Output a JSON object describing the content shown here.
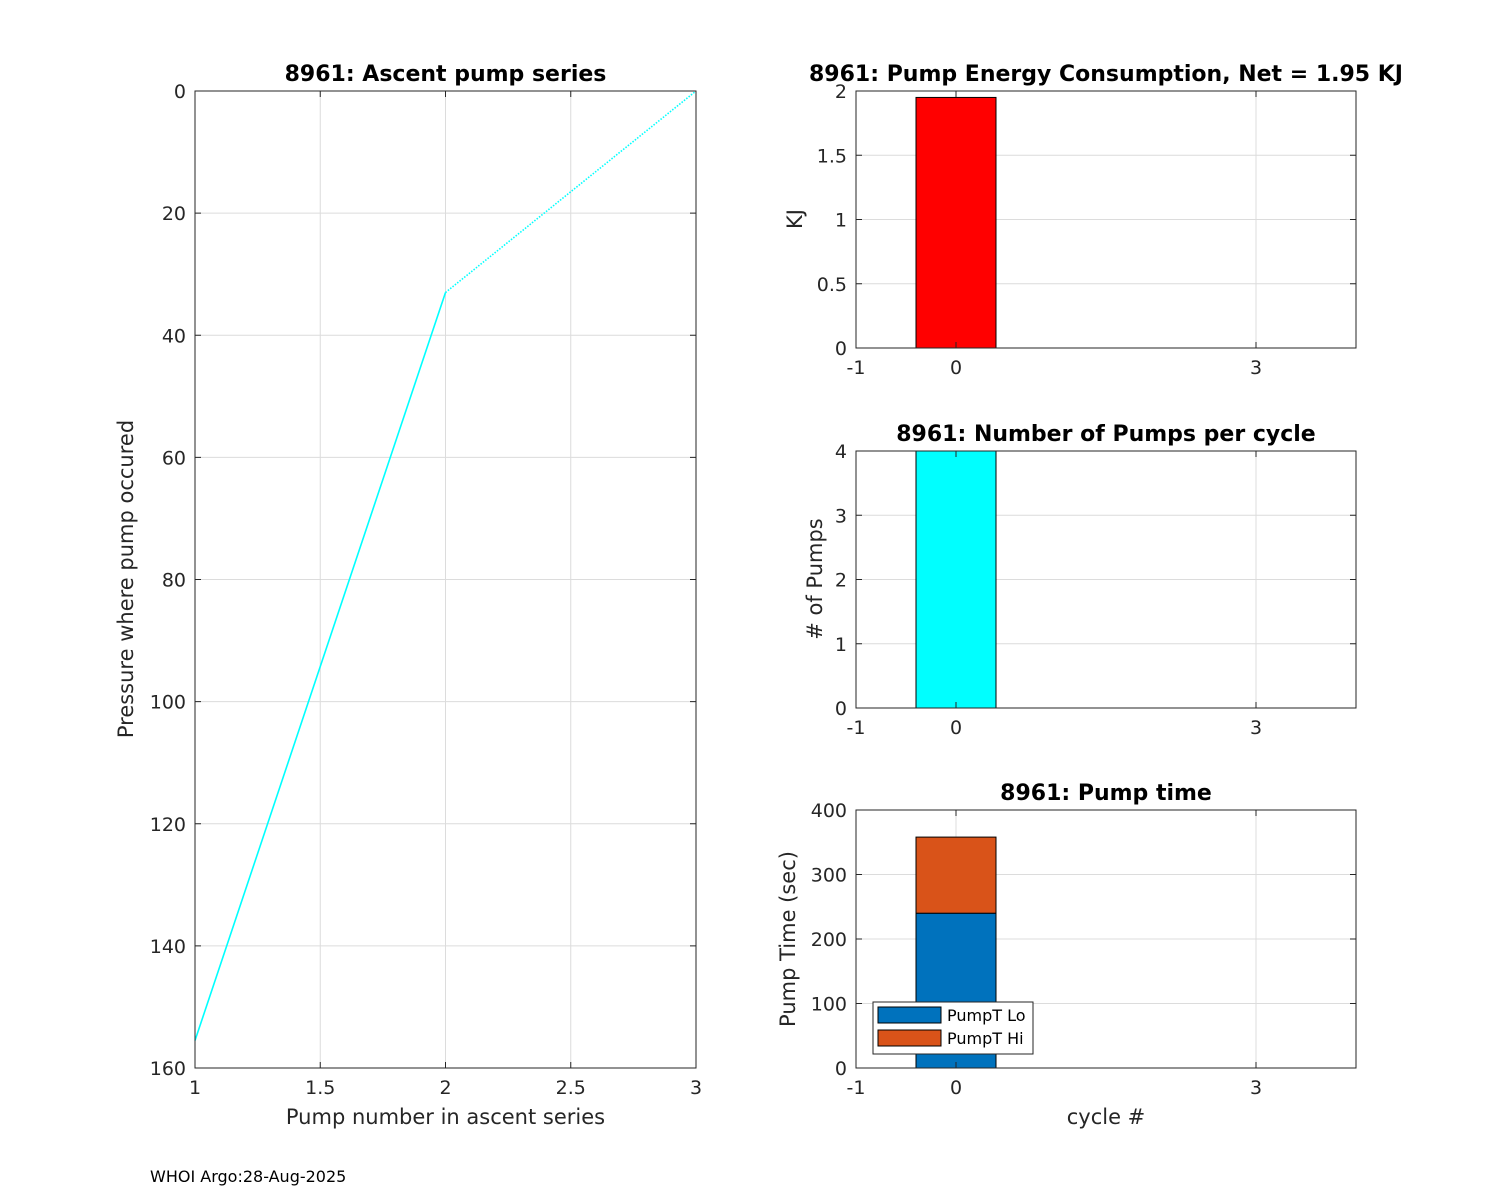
{
  "footer": "WHOI Argo:28-Aug-2025",
  "chart_data": [
    {
      "id": "ascent",
      "type": "line",
      "title": "8961: Ascent pump series",
      "xlabel": "Pump number in ascent series",
      "ylabel": "Pressure where pump occured",
      "xlim": [
        1,
        3
      ],
      "ylim": [
        0,
        160
      ],
      "y_reversed": true,
      "grid": true,
      "xticks": [
        1,
        1.5,
        2,
        2.5,
        3
      ],
      "xtick_labels": [
        "1",
        "1.5",
        "2",
        "2.5",
        "3"
      ],
      "yticks": [
        0,
        20,
        40,
        60,
        80,
        100,
        120,
        140,
        160
      ],
      "ytick_labels": [
        "0",
        "20",
        "40",
        "60",
        "80",
        "100",
        "120",
        "140",
        "160"
      ],
      "series": [
        {
          "x": [
            1,
            2
          ],
          "y": [
            155.5,
            33
          ],
          "color": "#00ffff",
          "style": "solid"
        },
        {
          "x": [
            2,
            3
          ],
          "y": [
            33,
            0
          ],
          "color": "#00ffff",
          "style": "dotted"
        }
      ]
    },
    {
      "id": "energy",
      "type": "bar",
      "title": "8961: Pump Energy Consumption,  Net =   1.95 KJ",
      "xlabel": "",
      "ylabel": "KJ",
      "xlim": [
        -1,
        4
      ],
      "ylim": [
        0,
        2
      ],
      "grid": true,
      "xticks": [
        -1,
        0,
        3
      ],
      "xtick_labels": [
        "-1",
        "0",
        "3"
      ],
      "yticks": [
        0,
        0.5,
        1,
        1.5,
        2
      ],
      "ytick_labels": [
        "0",
        "0.5",
        "1",
        "1.5",
        "2"
      ],
      "bar_width": 0.8,
      "x": [
        0
      ],
      "series": [
        {
          "values": [
            1.95
          ],
          "color": "#ff0000"
        }
      ]
    },
    {
      "id": "pumps",
      "type": "bar",
      "title": "8961: Number of Pumps per cycle",
      "xlabel": "",
      "ylabel": "# of Pumps",
      "xlim": [
        -1,
        4
      ],
      "ylim": [
        0,
        4
      ],
      "grid": true,
      "xticks": [
        -1,
        0,
        3
      ],
      "xtick_labels": [
        "-1",
        "0",
        "3"
      ],
      "yticks": [
        0,
        1,
        2,
        3,
        4
      ],
      "ytick_labels": [
        "0",
        "1",
        "2",
        "3",
        "4"
      ],
      "bar_width": 0.8,
      "x": [
        0
      ],
      "series": [
        {
          "values": [
            4
          ],
          "color": "#00ffff"
        }
      ]
    },
    {
      "id": "pumptime",
      "type": "bar",
      "stacked": true,
      "title": "8961: Pump time",
      "xlabel": "cycle #",
      "ylabel": "Pump Time (sec)",
      "xlim": [
        -1,
        4
      ],
      "ylim": [
        0,
        400
      ],
      "grid": true,
      "xticks": [
        -1,
        0,
        3
      ],
      "xtick_labels": [
        "-1",
        "0",
        "3"
      ],
      "yticks": [
        0,
        100,
        200,
        300,
        400
      ],
      "ytick_labels": [
        "0",
        "100",
        "200",
        "300",
        "400"
      ],
      "bar_width": 0.8,
      "x": [
        0
      ],
      "legend_location": "bottom-left",
      "series": [
        {
          "name": "PumpT Lo",
          "values": [
            240
          ],
          "color": "#0072bd"
        },
        {
          "name": "PumpT Hi",
          "values": [
            118
          ],
          "color": "#d95319"
        }
      ]
    }
  ]
}
